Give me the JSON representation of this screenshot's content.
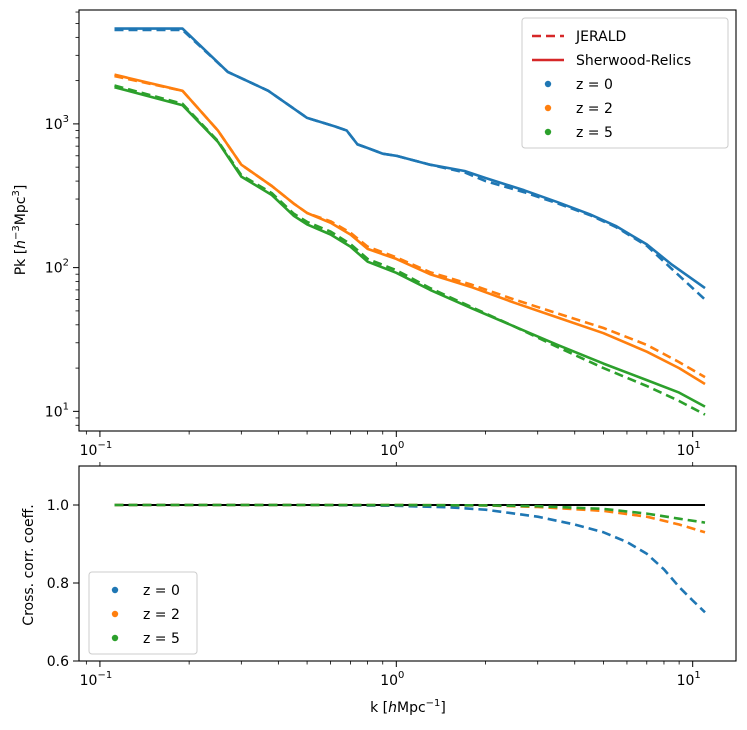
{
  "chart_data": [
    {
      "type": "line",
      "scale": "log-log",
      "title": "",
      "xlabel": "",
      "ylabel": "Pk [h⁻³Mpc³]",
      "ylabel_parts": {
        "pre": "Pk [",
        "h": "h",
        "exp1": "−3",
        "mid": "Mpc",
        "exp2": "3",
        "post": "]"
      },
      "xlim": [
        0.085,
        14
      ],
      "ylim": [
        7.3,
        6200
      ],
      "x_ticks": [
        {
          "value": 0.1,
          "base": "10",
          "exp": "−1"
        },
        {
          "value": 1,
          "base": "10",
          "exp": "0"
        },
        {
          "value": 10,
          "base": "10",
          "exp": "1"
        }
      ],
      "y_ticks": [
        {
          "value": 10,
          "base": "10",
          "exp": "1"
        },
        {
          "value": 100,
          "base": "10",
          "exp": "2"
        },
        {
          "value": 1000,
          "base": "10",
          "exp": "3"
        }
      ],
      "legend": {
        "position": "top-right",
        "entries": [
          {
            "label": "JERALD",
            "marker": "dashed-line",
            "color": "#d62728"
          },
          {
            "label": "Sherwood-Relics",
            "marker": "solid-line",
            "color": "#d62728"
          },
          {
            "label": "z = 0",
            "marker": "dot",
            "color": "#1f77b4"
          },
          {
            "label": "z = 2",
            "marker": "dot",
            "color": "#ff7f0e"
          },
          {
            "label": "z = 5",
            "marker": "dot",
            "color": "#2ca02c"
          }
        ]
      },
      "series": [
        {
          "name": "z = 0 Sherwood-Relics",
          "color": "#1f77b4",
          "style": "solid",
          "points": [
            [
              0.112,
              4600
            ],
            [
              0.19,
              4600
            ],
            [
              0.27,
              2300
            ],
            [
              0.37,
              1700
            ],
            [
              0.5,
              1100
            ],
            [
              0.62,
              960
            ],
            [
              0.68,
              900
            ],
            [
              0.74,
              720
            ],
            [
              0.8,
              680
            ],
            [
              0.9,
              620
            ],
            [
              1.0,
              600
            ],
            [
              1.3,
              520
            ],
            [
              1.7,
              470
            ],
            [
              2.0,
              420
            ],
            [
              2.7,
              345
            ],
            [
              3.5,
              285
            ],
            [
              4.5,
              235
            ],
            [
              5.5,
              195
            ],
            [
              7.0,
              145
            ],
            [
              8.5,
              105
            ],
            [
              11.0,
              72
            ]
          ]
        },
        {
          "name": "z = 0 JERALD",
          "color": "#1f77b4",
          "style": "dashed",
          "points": [
            [
              0.112,
              4500
            ],
            [
              0.19,
              4500
            ],
            [
              0.27,
              2300
            ],
            [
              0.37,
              1700
            ],
            [
              0.5,
              1100
            ],
            [
              0.62,
              960
            ],
            [
              0.68,
              900
            ],
            [
              0.74,
              720
            ],
            [
              0.8,
              680
            ],
            [
              0.9,
              620
            ],
            [
              1.0,
              600
            ],
            [
              1.3,
              520
            ],
            [
              1.7,
              460
            ],
            [
              2.0,
              400
            ],
            [
              2.7,
              335
            ],
            [
              3.5,
              280
            ],
            [
              4.5,
              232
            ],
            [
              5.5,
              192
            ],
            [
              7.0,
              142
            ],
            [
              8.5,
              98
            ],
            [
              11.0,
              60
            ]
          ]
        },
        {
          "name": "z = 2 Sherwood-Relics",
          "color": "#ff7f0e",
          "style": "solid",
          "points": [
            [
              0.112,
              2200
            ],
            [
              0.19,
              1700
            ],
            [
              0.25,
              900
            ],
            [
              0.3,
              520
            ],
            [
              0.38,
              370
            ],
            [
              0.45,
              280
            ],
            [
              0.5,
              240
            ],
            [
              0.6,
              205
            ],
            [
              0.7,
              170
            ],
            [
              0.8,
              135
            ],
            [
              1.0,
              115
            ],
            [
              1.3,
              90
            ],
            [
              1.8,
              73
            ],
            [
              2.5,
              57
            ],
            [
              3.5,
              45
            ],
            [
              5.0,
              35
            ],
            [
              7.0,
              26
            ],
            [
              9.0,
              20
            ],
            [
              11.0,
              15.5
            ]
          ]
        },
        {
          "name": "z = 2 JERALD",
          "color": "#ff7f0e",
          "style": "dashed",
          "points": [
            [
              0.112,
              2150
            ],
            [
              0.19,
              1700
            ],
            [
              0.25,
              900
            ],
            [
              0.3,
              520
            ],
            [
              0.38,
              370
            ],
            [
              0.45,
              280
            ],
            [
              0.5,
              240
            ],
            [
              0.6,
              210
            ],
            [
              0.7,
              175
            ],
            [
              0.8,
              140
            ],
            [
              1.0,
              118
            ],
            [
              1.3,
              93
            ],
            [
              1.8,
              76
            ],
            [
              2.5,
              60
            ],
            [
              3.5,
              48
            ],
            [
              5.0,
              38
            ],
            [
              7.0,
              29
            ],
            [
              9.0,
              22
            ],
            [
              11.0,
              17.3
            ]
          ]
        },
        {
          "name": "z = 5 Sherwood-Relics",
          "color": "#2ca02c",
          "style": "solid",
          "points": [
            [
              0.112,
              1800
            ],
            [
              0.19,
              1350
            ],
            [
              0.25,
              750
            ],
            [
              0.3,
              430
            ],
            [
              0.38,
              320
            ],
            [
              0.45,
              230
            ],
            [
              0.5,
              200
            ],
            [
              0.6,
              170
            ],
            [
              0.7,
              140
            ],
            [
              0.8,
              110
            ],
            [
              1.0,
              92
            ],
            [
              1.3,
              70
            ],
            [
              1.8,
              52
            ],
            [
              2.5,
              39
            ],
            [
              3.5,
              29
            ],
            [
              5.0,
              21.5
            ],
            [
              7.0,
              16.5
            ],
            [
              9.0,
              13.5
            ],
            [
              11.0,
              10.8
            ]
          ]
        },
        {
          "name": "z = 5 JERALD",
          "color": "#2ca02c",
          "style": "dashed",
          "points": [
            [
              0.112,
              1850
            ],
            [
              0.19,
              1380
            ],
            [
              0.25,
              760
            ],
            [
              0.3,
              440
            ],
            [
              0.38,
              330
            ],
            [
              0.45,
              238
            ],
            [
              0.5,
              208
            ],
            [
              0.6,
              178
            ],
            [
              0.7,
              146
            ],
            [
              0.8,
              115
            ],
            [
              1.0,
              96
            ],
            [
              1.3,
              72
            ],
            [
              1.8,
              53
            ],
            [
              2.5,
              39
            ],
            [
              3.5,
              28
            ],
            [
              5.0,
              20
            ],
            [
              7.0,
              15
            ],
            [
              9.0,
              11.8
            ],
            [
              11.0,
              9.5
            ]
          ]
        }
      ]
    },
    {
      "type": "line",
      "scale": "log-x",
      "title": "",
      "xlabel": "k [hMpc⁻¹]",
      "xlabel_parts": {
        "pre": "k [",
        "h": "h",
        "mid": "Mpc",
        "exp": "−1",
        "post": "]"
      },
      "ylabel": "Cross. corr. coeff.",
      "xlim": [
        0.085,
        14
      ],
      "ylim": [
        0.6,
        1.1
      ],
      "x_ticks": [
        {
          "value": 0.1,
          "base": "10",
          "exp": "−1"
        },
        {
          "value": 1,
          "base": "10",
          "exp": "0"
        },
        {
          "value": 10,
          "base": "10",
          "exp": "1"
        }
      ],
      "y_ticks": [
        {
          "value": 0.6,
          "label": "0.6"
        },
        {
          "value": 0.8,
          "label": "0.8"
        },
        {
          "value": 1.0,
          "label": "1.0"
        }
      ],
      "legend": {
        "position": "bottom-left",
        "entries": [
          {
            "label": "z = 0",
            "marker": "dot",
            "color": "#1f77b4"
          },
          {
            "label": "z = 2",
            "marker": "dot",
            "color": "#ff7f0e"
          },
          {
            "label": "z = 5",
            "marker": "dot",
            "color": "#2ca02c"
          }
        ]
      },
      "series": [
        {
          "name": "reference",
          "color": "#000000",
          "style": "solid",
          "points": [
            [
              0.112,
              1.0
            ],
            [
              11.0,
              1.0
            ]
          ]
        },
        {
          "name": "z = 0",
          "color": "#1f77b4",
          "style": "dashed",
          "points": [
            [
              0.112,
              1.0
            ],
            [
              0.5,
              1.0
            ],
            [
              1.0,
              0.998
            ],
            [
              1.5,
              0.994
            ],
            [
              2.0,
              0.988
            ],
            [
              3.0,
              0.97
            ],
            [
              4.0,
              0.95
            ],
            [
              5.0,
              0.93
            ],
            [
              6.0,
              0.905
            ],
            [
              7.0,
              0.875
            ],
            [
              8.0,
              0.835
            ],
            [
              9.0,
              0.79
            ],
            [
              10.0,
              0.755
            ],
            [
              11.0,
              0.725
            ]
          ]
        },
        {
          "name": "z = 2",
          "color": "#ff7f0e",
          "style": "dashed",
          "points": [
            [
              0.112,
              1.0
            ],
            [
              1.0,
              1.0
            ],
            [
              2.0,
              0.999
            ],
            [
              3.0,
              0.995
            ],
            [
              5.0,
              0.985
            ],
            [
              7.0,
              0.97
            ],
            [
              9.0,
              0.95
            ],
            [
              11.0,
              0.93
            ]
          ]
        },
        {
          "name": "z = 5",
          "color": "#2ca02c",
          "style": "dashed",
          "points": [
            [
              0.112,
              1.0
            ],
            [
              1.0,
              1.0
            ],
            [
              2.0,
              0.999
            ],
            [
              3.0,
              0.997
            ],
            [
              5.0,
              0.99
            ],
            [
              7.0,
              0.978
            ],
            [
              9.0,
              0.965
            ],
            [
              11.0,
              0.955
            ]
          ]
        }
      ]
    }
  ]
}
